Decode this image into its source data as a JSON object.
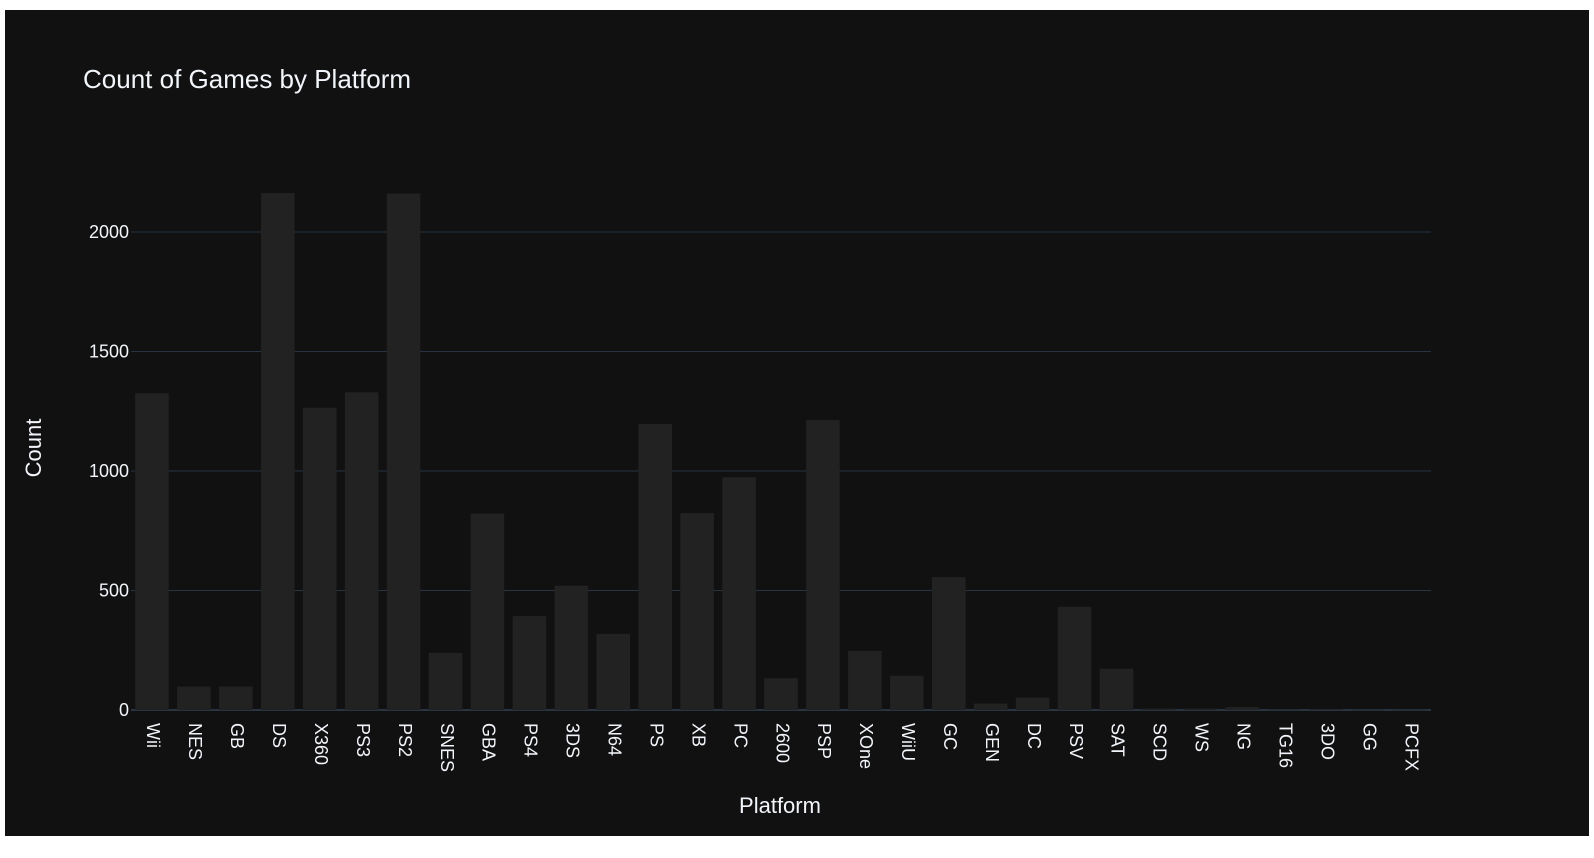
{
  "colors": {
    "background": "#111111",
    "bar": "#222222",
    "gridline": "#283442",
    "text": "#f2f5fa"
  },
  "chart_data": {
    "type": "bar",
    "title": "Count of Games by Platform",
    "xlabel": "Platform",
    "ylabel": "Count",
    "ylim": [
      0,
      2250
    ],
    "yticks": [
      0,
      500,
      1000,
      1500,
      2000
    ],
    "grid": true,
    "categories": [
      "Wii",
      "NES",
      "GB",
      "DS",
      "X360",
      "PS3",
      "PS2",
      "SNES",
      "GBA",
      "PS4",
      "3DS",
      "N64",
      "PS",
      "XB",
      "PC",
      "2600",
      "PSP",
      "XOne",
      "WiiU",
      "GC",
      "GEN",
      "DC",
      "PSV",
      "SAT",
      "SCD",
      "WS",
      "NG",
      "TG16",
      "3DO",
      "GG",
      "PCFX"
    ],
    "values": [
      1325,
      98,
      98,
      2163,
      1265,
      1329,
      2161,
      239,
      822,
      393,
      520,
      319,
      1197,
      824,
      974,
      133,
      1213,
      247,
      143,
      556,
      27,
      52,
      432,
      173,
      6,
      6,
      12,
      2,
      3,
      1,
      1
    ]
  }
}
